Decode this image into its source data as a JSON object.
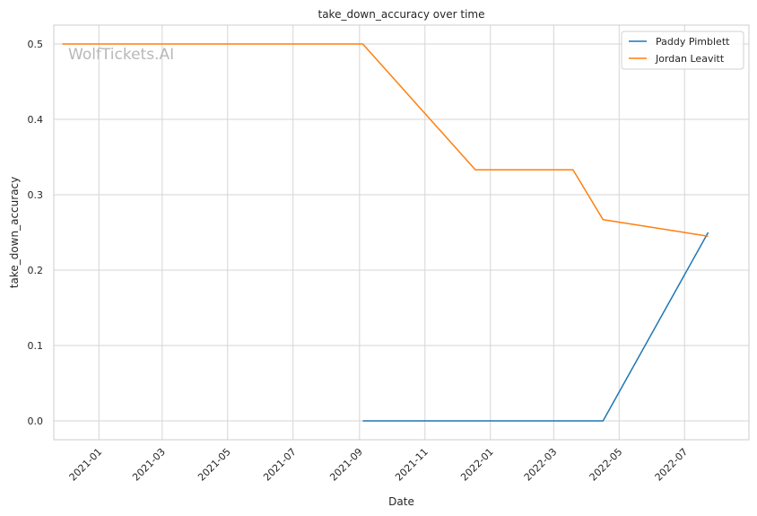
{
  "chart_data": {
    "type": "line",
    "title": "take_down_accuracy over time",
    "xlabel": "Date",
    "ylabel": "take_down_accuracy",
    "watermark": "WolfTickets.AI",
    "x_axis": {
      "type": "date",
      "range": [
        "2020-11-20",
        "2022-08-30"
      ],
      "ticks": [
        "2021-01",
        "2021-03",
        "2021-05",
        "2021-07",
        "2021-09",
        "2021-11",
        "2022-01",
        "2022-03",
        "2022-05",
        "2022-07"
      ],
      "tick_rotation": 45
    },
    "y_axis": {
      "range": [
        -0.025,
        0.525
      ],
      "ticks": [
        "0.0",
        "0.1",
        "0.2",
        "0.3",
        "0.4",
        "0.5"
      ]
    },
    "grid": true,
    "legend_position": "top-right",
    "series": [
      {
        "name": "Paddy Pimblett",
        "color": "#1f77b4",
        "x": [
          "2021-09-04",
          "2022-04-16",
          "2022-07-23"
        ],
        "y": [
          0.0,
          0.0,
          0.25
        ]
      },
      {
        "name": "Jordan Leavitt",
        "color": "#ff7f0e",
        "x": [
          "2020-11-28",
          "2021-09-04",
          "2021-12-18",
          "2022-03-19",
          "2022-04-16",
          "2022-07-23"
        ],
        "y": [
          0.5,
          0.5,
          0.333,
          0.333,
          0.267,
          0.245
        ]
      }
    ]
  }
}
